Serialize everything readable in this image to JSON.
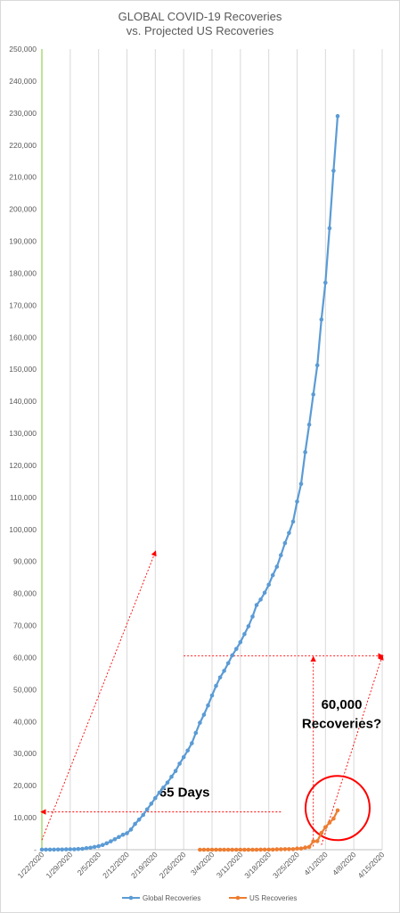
{
  "chart_data": {
    "type": "line",
    "title": "GLOBAL COVID-19 Recoveries",
    "subtitle": "vs. Projected US Recoveries",
    "ylim": [
      0,
      250000
    ],
    "yticks": [
      0,
      10000,
      20000,
      30000,
      40000,
      50000,
      60000,
      70000,
      80000,
      90000,
      100000,
      110000,
      120000,
      130000,
      140000,
      150000,
      160000,
      170000,
      180000,
      190000,
      200000,
      210000,
      220000,
      230000,
      240000,
      250000
    ],
    "ytick_labels": [
      "-",
      "10,000",
      "20,000",
      "30,000",
      "40,000",
      "50,000",
      "60,000",
      "70,000",
      "80,000",
      "90,000",
      "100,000",
      "110,000",
      "120,000",
      "130,000",
      "140,000",
      "150,000",
      "160,000",
      "170,000",
      "180,000",
      "190,000",
      "200,000",
      "210,000",
      "220,000",
      "230,000",
      "240,000",
      "250,000"
    ],
    "xticks": [
      "1/22/2020",
      "1/29/2020",
      "2/5/2020",
      "2/12/2020",
      "2/19/2020",
      "2/26/2020",
      "3/4/2020",
      "3/11/2020",
      "3/18/2020",
      "3/25/2020",
      "4/1/2020",
      "4/8/2020",
      "4/15/2020"
    ],
    "x_day_range": [
      0,
      84
    ],
    "grid": "vertical",
    "legend_position": "bottom",
    "series": [
      {
        "name": "Global Recoveries",
        "color": "#5b9bd5",
        "x_start": "1/22/2020",
        "values": [
          28,
          30,
          36,
          39,
          52,
          61,
          107,
          126,
          143,
          222,
          284,
          472,
          623,
          852,
          1124,
          1487,
          2011,
          2616,
          3244,
          3946,
          4683,
          5150,
          6295,
          8058,
          9395,
          10865,
          12583,
          14352,
          16121,
          17822,
          19374,
          20968,
          22771,
          24582,
          26862,
          28903,
          30958,
          33241,
          36467,
          39649,
          42141,
          45053,
          48167,
          51149,
          53788,
          55836,
          58245,
          60694,
          62700,
          64771,
          67315,
          69767,
          72814,
          76400,
          78127,
          80227,
          82746,
          85731,
          88374,
          91959,
          95744,
          98887,
          102458,
          108708,
          114225,
          124128,
          132722,
          142159,
          151288,
          165542,
          177064,
          194046,
          212009,
          229068
        ],
        "markers": true
      },
      {
        "name": "US Recoveries",
        "color": "#ed7d31",
        "x_start": "3/1/2020",
        "values": [
          7,
          7,
          7,
          7,
          7,
          7,
          7,
          8,
          8,
          8,
          8,
          8,
          8,
          12,
          12,
          17,
          17,
          17,
          17,
          106,
          147,
          171,
          178,
          178,
          348,
          361,
          681,
          869,
          2612,
          2665,
          5220,
          7024,
          8474,
          9707,
          12282
        ],
        "markers": true
      }
    ],
    "annotations": {
      "days_label": "65 Days",
      "target_label_line1": "60,000",
      "target_label_line2": "Recoveries?",
      "arrows": [
        {
          "from": [
            "1/22/2020",
            3000
          ],
          "to": [
            "2/19/2020",
            93000
          ]
        },
        {
          "from": [
            "3/21/2020",
            11800
          ],
          "to": [
            "1/22/2020",
            11800
          ]
        },
        {
          "from": [
            "2/26/2020",
            60500
          ],
          "to": [
            "4/15/2020",
            60500
          ]
        },
        {
          "from": [
            "3/29/2020",
            1000
          ],
          "to": [
            "3/29/2020",
            60000
          ]
        },
        {
          "from": [
            "3/31/2020",
            1500
          ],
          "to": [
            "4/15/2020",
            60500
          ]
        }
      ],
      "circle_center": [
        "4/4/2020",
        13000
      ]
    }
  }
}
